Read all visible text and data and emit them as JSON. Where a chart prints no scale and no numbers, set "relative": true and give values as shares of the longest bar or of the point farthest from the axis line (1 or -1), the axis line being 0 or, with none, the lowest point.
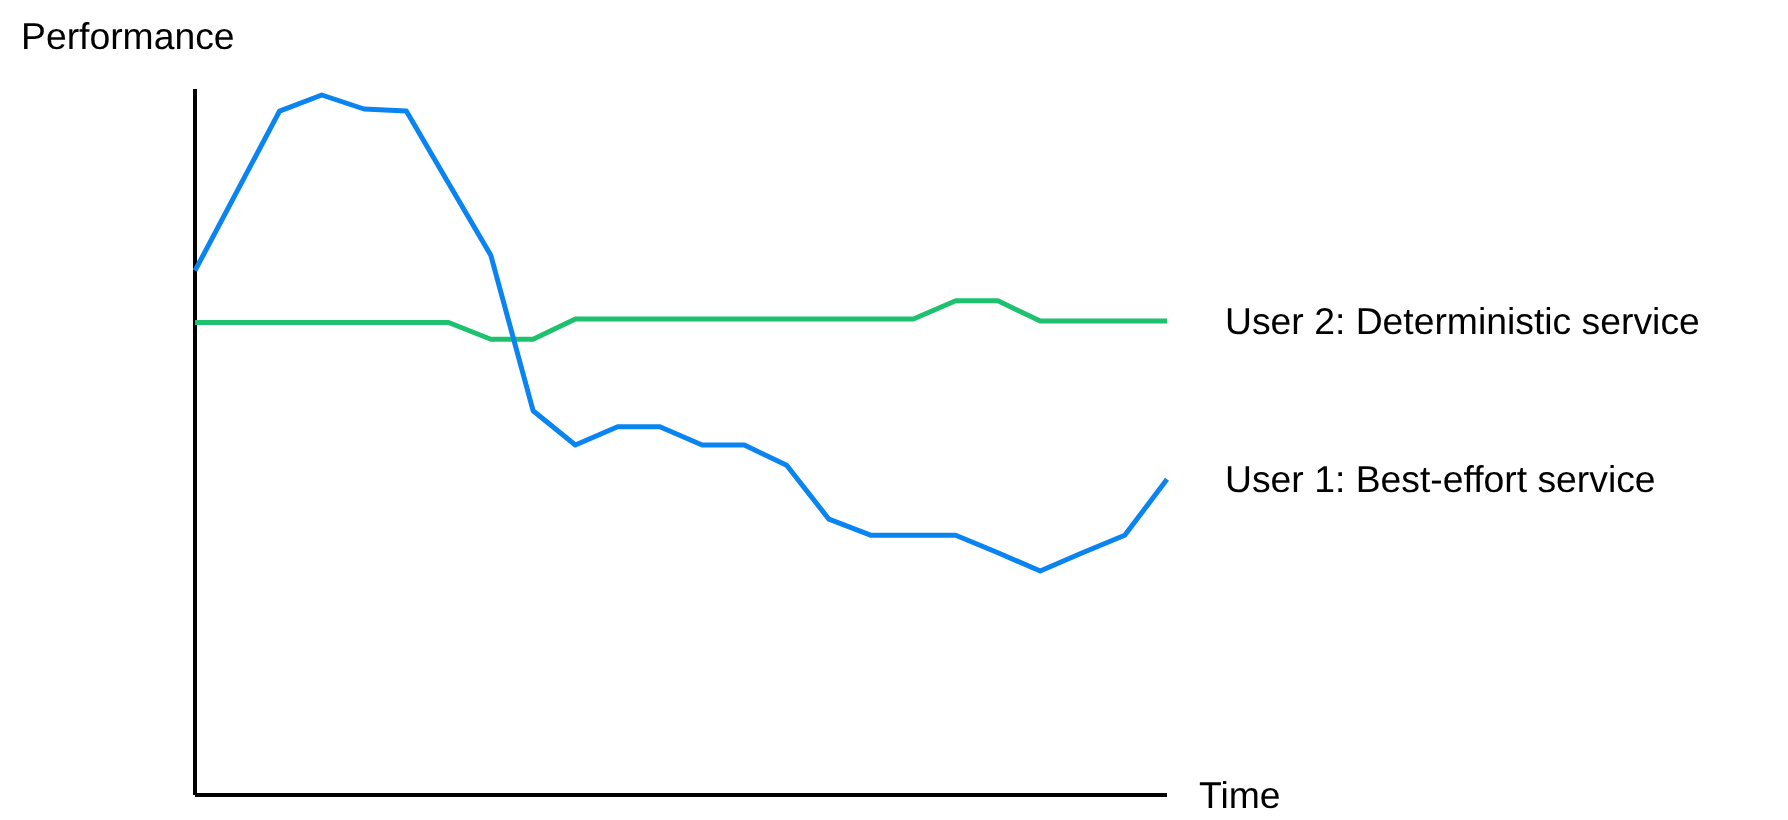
{
  "chart_data": {
    "type": "line",
    "relative": true,
    "xlabel": "Time",
    "ylabel": "Performance",
    "legend": false,
    "grid": false,
    "marker": "none",
    "line_style": "solid",
    "categories": [
      null,
      null,
      null,
      null,
      null,
      null,
      null,
      null,
      null,
      null,
      null,
      null,
      null,
      null,
      null,
      null,
      null,
      null,
      null,
      null,
      null,
      null,
      null,
      null
    ],
    "series": [
      {
        "name": "User 2: Deterministic service",
        "color": "#1ec26e",
        "values": [
          0.675,
          0.675,
          0.675,
          0.675,
          0.675,
          0.675,
          0.675,
          0.651,
          0.651,
          0.68,
          0.68,
          0.68,
          0.68,
          0.68,
          0.68,
          0.68,
          0.68,
          0.68,
          0.706,
          0.706,
          0.677,
          0.677,
          0.677,
          0.677
        ]
      },
      {
        "name": "User 1: Best-effort service",
        "color": "#0a84f0",
        "values": [
          0.749,
          0.863,
          0.977,
          1,
          0.98,
          0.977,
          0.874,
          0.771,
          0.549,
          0.5,
          0.526,
          0.526,
          0.5,
          0.5,
          0.471,
          0.394,
          0.371,
          0.371,
          0.371,
          0.346,
          0.32,
          0.346,
          0.371,
          0.451
        ]
      }
    ]
  }
}
